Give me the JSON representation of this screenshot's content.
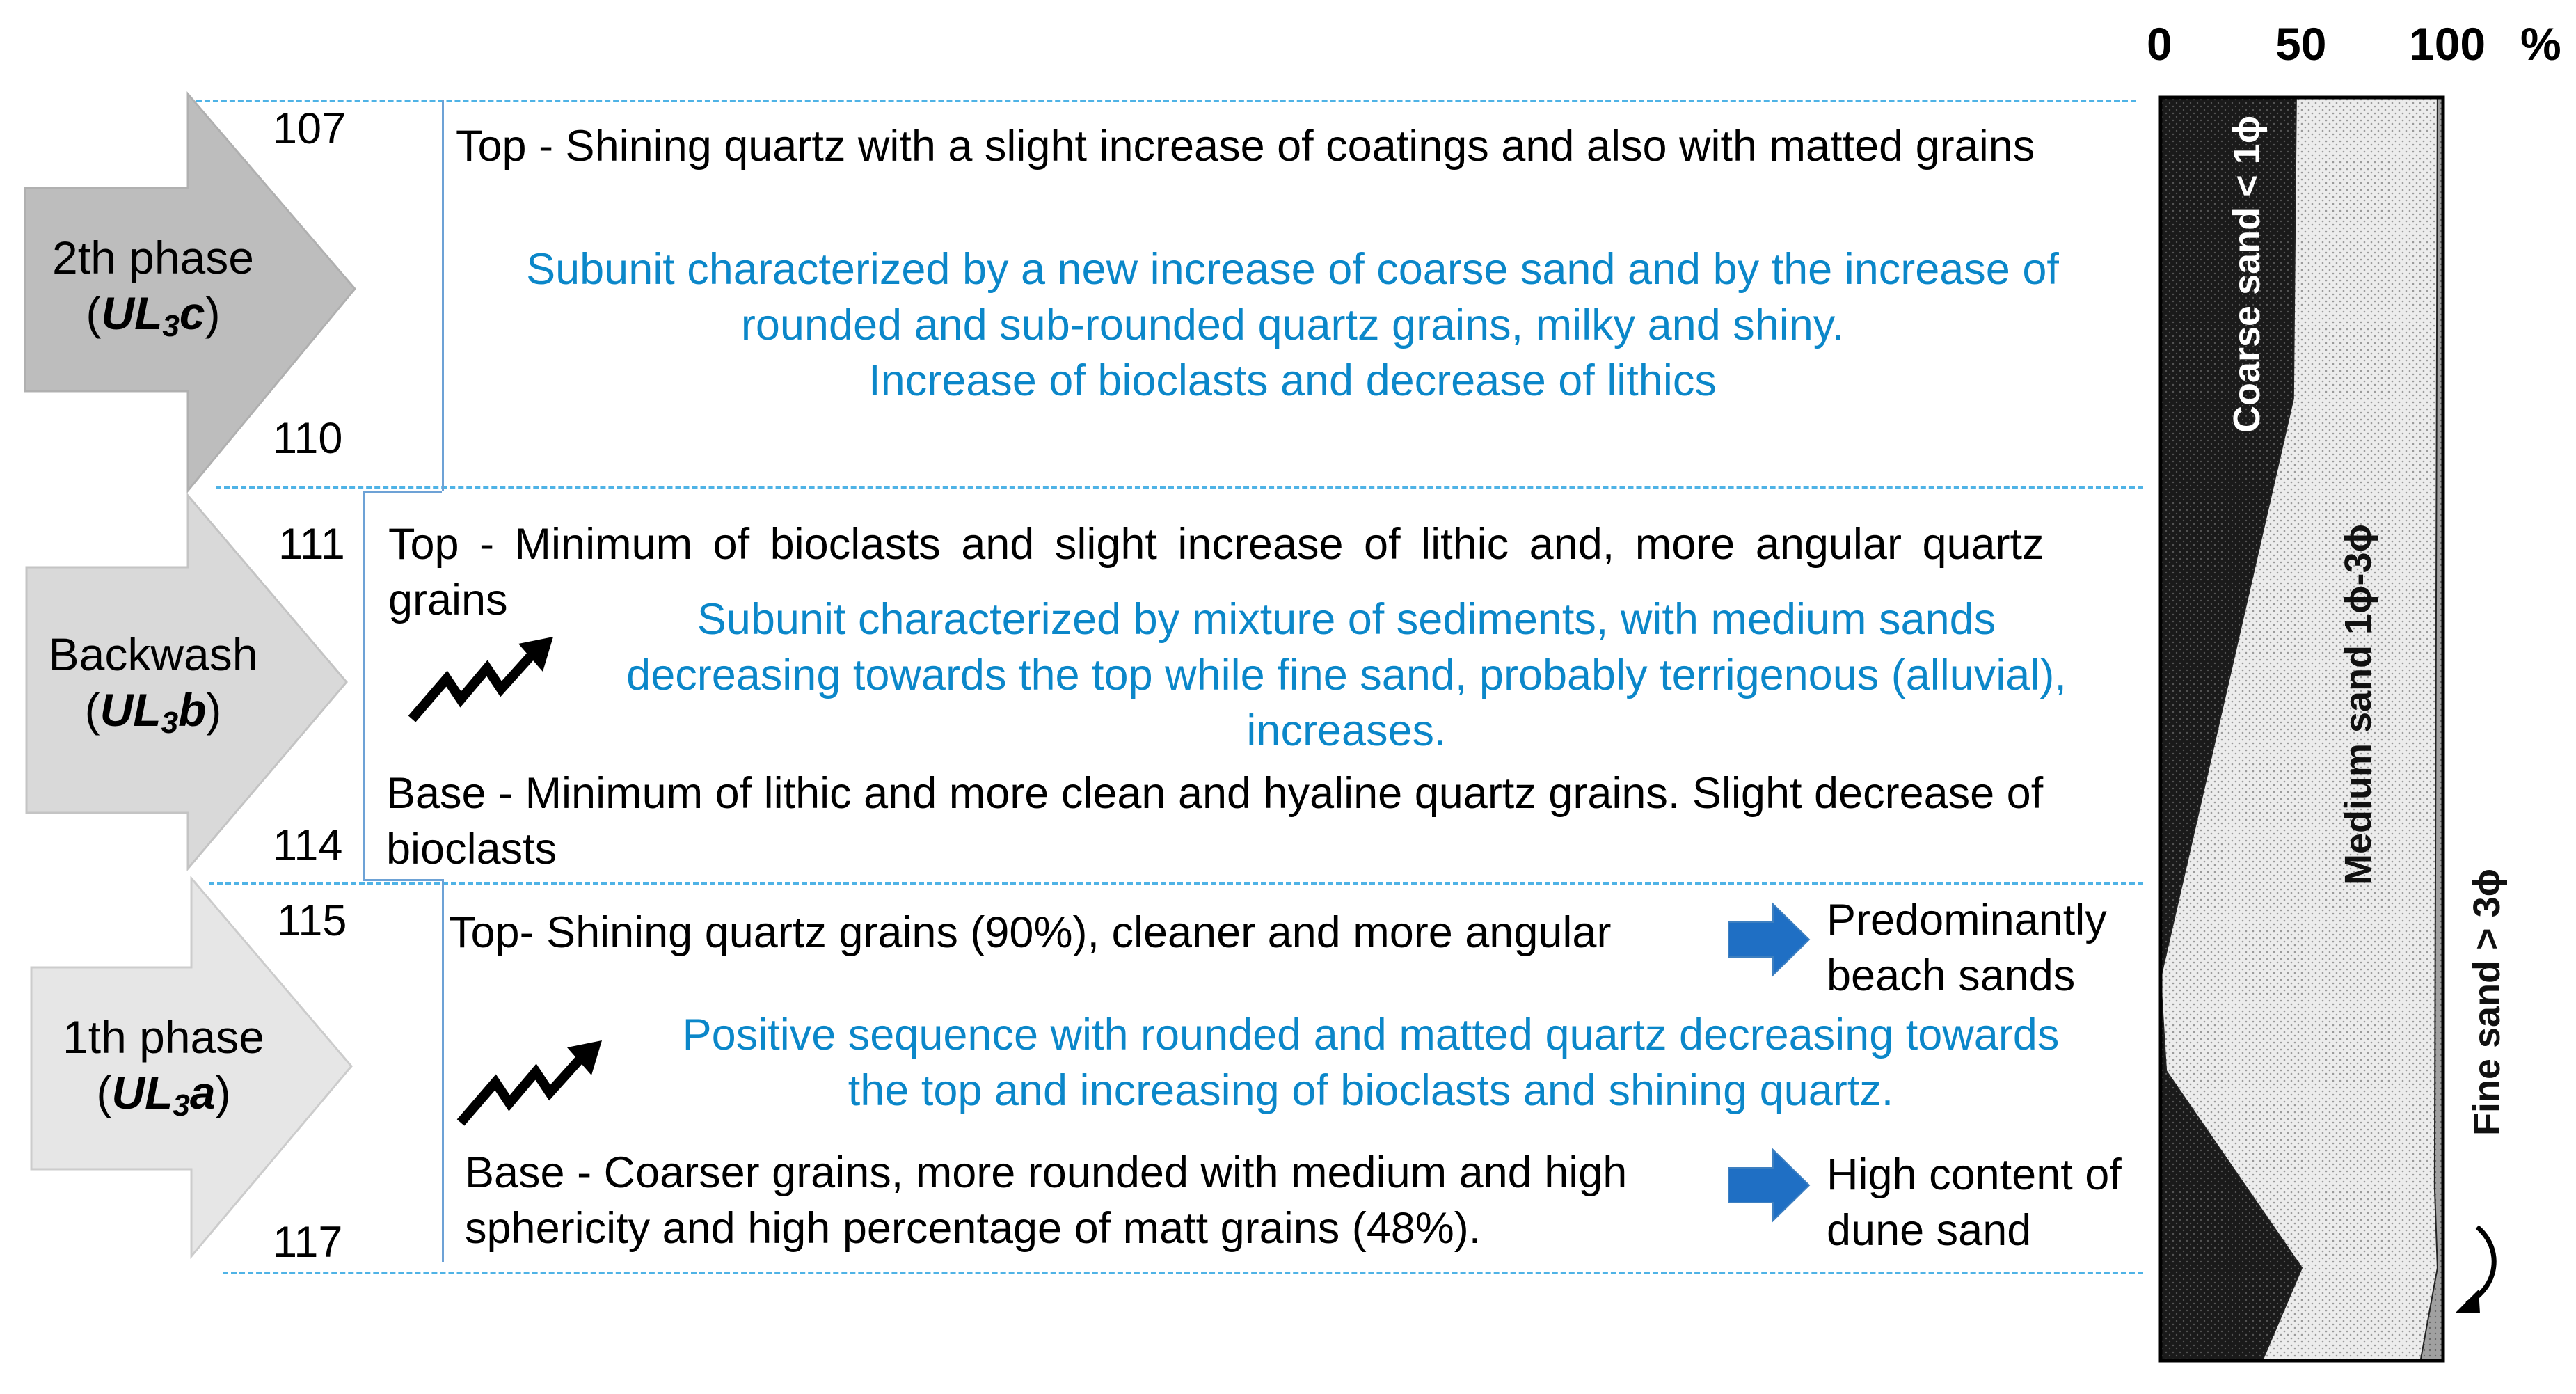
{
  "phases": [
    {
      "label": "2th  phase",
      "code_letters": "UL",
      "code_sub": "3",
      "code_suffix": "c",
      "fill": "#bdbdbd",
      "depth_top": "107",
      "depth_bottom": "110"
    },
    {
      "label": "Backwash",
      "code_letters": "UL",
      "code_sub": "3",
      "code_suffix": "b",
      "fill": "#d9d9d9",
      "depth_top": "111",
      "depth_bottom": "114"
    },
    {
      "label": "1th phase",
      "code_letters": "UL",
      "code_sub": "3",
      "code_suffix": "a",
      "fill": "#e6e6e6",
      "depth_top": "115",
      "depth_bottom": "117"
    }
  ],
  "section_c": {
    "top": "Top - Shining quartz with a slight increase of coatings and also with matted grains",
    "summary": [
      "Subunit characterized by a new increase of coarse sand and by the increase of",
      "rounded and sub-rounded quartz grains, milky and shiny.",
      "Increase of bioclasts and decrease of lithics"
    ]
  },
  "section_b": {
    "top": [
      "Top - Minimum of bioclasts and slight increase of lithic and, more angular quartz",
      "grains"
    ],
    "summary": [
      "Subunit characterized by mixture of sediments, with medium sands",
      "decreasing towards the top while fine sand, probably terrigenous (alluvial),",
      "increases."
    ],
    "base": [
      "Base - Minimum of lithic and more clean and hyaline quartz grains. Slight decrease of",
      "bioclasts"
    ]
  },
  "section_a": {
    "top": "Top- Shining quartz grains (90%), cleaner and more angular",
    "top_result": [
      "Predominantly",
      "beach sands"
    ],
    "summary": [
      "Positive sequence with rounded and matted quartz decreasing towards",
      "the top and increasing of bioclasts and shining quartz."
    ],
    "base": [
      "Base - Coarser grains, more rounded with medium and high",
      "sphericity and high percentage of matt grains (48%)."
    ],
    "base_result": [
      "High content of",
      "dune sand"
    ]
  },
  "chart_data": {
    "type": "area",
    "stacked": true,
    "x_axis_ticks": [
      "0",
      "50",
      "100"
    ],
    "x_unit": "%",
    "xlim": [
      0,
      100
    ],
    "depth_levels": [
      107,
      110,
      111,
      114,
      115,
      117
    ],
    "series": [
      {
        "name": "Coarse sand < 1ϕ",
        "color": "#1a1a1a",
        "pattern": "dotted-dark",
        "points": [
          {
            "depth": 106.9,
            "value": 48
          },
          {
            "depth": 109.5,
            "value": 47
          },
          {
            "depth": 114.5,
            "value": 0
          },
          {
            "depth": 115.3,
            "value": 2
          },
          {
            "depth": 117.0,
            "value": 50
          },
          {
            "depth": 117.8,
            "value": 36
          }
        ]
      },
      {
        "name": "Medium sand 1ϕ-3ϕ",
        "color": "#e2e2e2",
        "pattern": "dotted-light",
        "points": [
          {
            "depth": 106.9,
            "value": 98
          },
          {
            "depth": 116.3,
            "value": 97
          },
          {
            "depth": 117.0,
            "value": 98
          },
          {
            "depth": 117.8,
            "value": 92
          }
        ]
      },
      {
        "name": "Fine sand > 3ϕ",
        "color": "#9a9a9a",
        "pattern": "dotted-grey",
        "points": [
          {
            "depth": 106.9,
            "value": 100
          },
          {
            "depth": 117.8,
            "value": 100
          }
        ]
      }
    ]
  },
  "colors": {
    "summary_text": "#0b87c9",
    "divider": "#4fb3e6",
    "arrow_result": "#1f6fc4"
  }
}
